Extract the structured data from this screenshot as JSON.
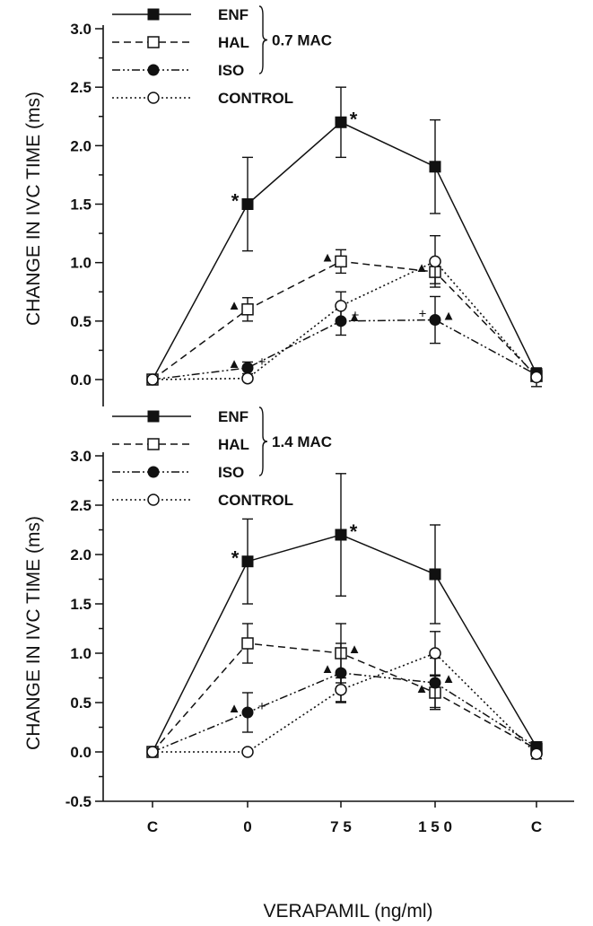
{
  "chart_data": [
    {
      "type": "line",
      "panel": "top",
      "ylabel": "CHANGE IN IVC TIME (ms)",
      "ylim": [
        0.0,
        3.0
      ],
      "yticks": [
        "0.0",
        "0.5",
        "1.0",
        "1.5",
        "2.0",
        "2.5",
        "3.0"
      ],
      "categories": [
        "C",
        "0",
        "75",
        "150",
        "C"
      ],
      "group_label": "0.7 MAC",
      "legend_position": "top-left",
      "series": [
        {
          "name": "ENF",
          "marker": "filled-square",
          "line": "solid",
          "values": [
            0.0,
            1.5,
            2.2,
            1.82,
            0.05
          ],
          "err": [
            0,
            0.4,
            0.3,
            0.4,
            0
          ]
        },
        {
          "name": "HAL",
          "marker": "open-square",
          "line": "dashed",
          "values": [
            0.0,
            0.6,
            1.01,
            0.92,
            0.03
          ],
          "err": [
            0,
            0.1,
            0.1,
            0.1,
            0
          ]
        },
        {
          "name": "ISO",
          "marker": "filled-circle",
          "line": "dash-dot-dot",
          "values": [
            0.0,
            0.1,
            0.5,
            0.51,
            0.04
          ],
          "err": [
            0,
            0.05,
            0.12,
            0.2,
            0
          ]
        },
        {
          "name": "CONTROL",
          "marker": "open-circle",
          "line": "dotted",
          "values": [
            0.0,
            0.01,
            0.63,
            1.01,
            0.02
          ],
          "err": [
            0,
            0,
            0.12,
            0.22,
            0.08
          ]
        }
      ],
      "annotations": [
        {
          "text": "*",
          "series": "ENF",
          "category_index": 1,
          "side": "left"
        },
        {
          "text": "*",
          "series": "ENF",
          "category_index": 2,
          "side": "right"
        },
        {
          "text": "▲",
          "series": "HAL",
          "category_index": 1,
          "side": "left"
        },
        {
          "text": "▲",
          "series": "HAL",
          "category_index": 2,
          "side": "left"
        },
        {
          "text": "▲",
          "series": "HAL",
          "category_index": 3,
          "side": "left"
        },
        {
          "text": "▲",
          "series": "ISO",
          "category_index": 1,
          "side": "left"
        },
        {
          "text": "+",
          "series": "ISO",
          "category_index": 1,
          "side": "right"
        },
        {
          "text": "▲",
          "series": "ISO",
          "category_index": 2,
          "side": "right"
        },
        {
          "text": "+",
          "series": "ISO",
          "category_index": 2,
          "side": "right"
        },
        {
          "text": "+",
          "series": "ISO",
          "category_index": 3,
          "side": "left"
        },
        {
          "text": "▲",
          "series": "ISO",
          "category_index": 3,
          "side": "right"
        }
      ]
    },
    {
      "type": "line",
      "panel": "bottom",
      "xlabel": "VERAPAMIL (ng/ml)",
      "ylabel": "CHANGE IN IVC TIME (ms)",
      "ylim": [
        -0.5,
        3.0
      ],
      "yticks": [
        "-0.5",
        "0.0",
        "0.5",
        "1.0",
        "1.5",
        "2.0",
        "2.5",
        "3.0"
      ],
      "categories": [
        "C",
        "0",
        "75",
        "150",
        "C"
      ],
      "group_label": "1.4 MAC",
      "legend_position": "top-left",
      "series": [
        {
          "name": "ENF",
          "marker": "filled-square",
          "line": "solid",
          "values": [
            0.0,
            1.93,
            2.2,
            1.8,
            0.05
          ],
          "err": [
            0,
            0.43,
            0.62,
            0.5,
            0
          ]
        },
        {
          "name": "HAL",
          "marker": "open-square",
          "line": "dashed",
          "values": [
            0.0,
            1.1,
            1.0,
            0.6,
            0.03
          ],
          "err": [
            0,
            0.2,
            0.3,
            0.17,
            0
          ]
        },
        {
          "name": "ISO",
          "marker": "filled-circle",
          "line": "dash-dot-dot",
          "values": [
            0.0,
            0.4,
            0.8,
            0.7,
            0.05
          ],
          "err": [
            0,
            0.2,
            0.3,
            0.25,
            0
          ]
        },
        {
          "name": "CONTROL",
          "marker": "open-circle",
          "line": "dotted",
          "values": [
            0.0,
            0.0,
            0.63,
            1.0,
            -0.02
          ],
          "err": [
            0,
            0,
            0.12,
            0.22,
            0.05
          ]
        }
      ],
      "annotations": [
        {
          "text": "*",
          "series": "ENF",
          "category_index": 1,
          "side": "left"
        },
        {
          "text": "*",
          "series": "ENF",
          "category_index": 2,
          "side": "right"
        },
        {
          "text": "▲",
          "series": "HAL",
          "category_index": 2,
          "side": "right"
        },
        {
          "text": "▲",
          "series": "HAL",
          "category_index": 3,
          "side": "left"
        },
        {
          "text": "▲",
          "series": "ISO",
          "category_index": 1,
          "side": "left"
        },
        {
          "text": "+",
          "series": "ISO",
          "category_index": 1,
          "side": "right"
        },
        {
          "text": "▲",
          "series": "ISO",
          "category_index": 2,
          "side": "left"
        },
        {
          "text": "▲",
          "series": "ISO",
          "category_index": 3,
          "side": "right"
        }
      ]
    }
  ]
}
